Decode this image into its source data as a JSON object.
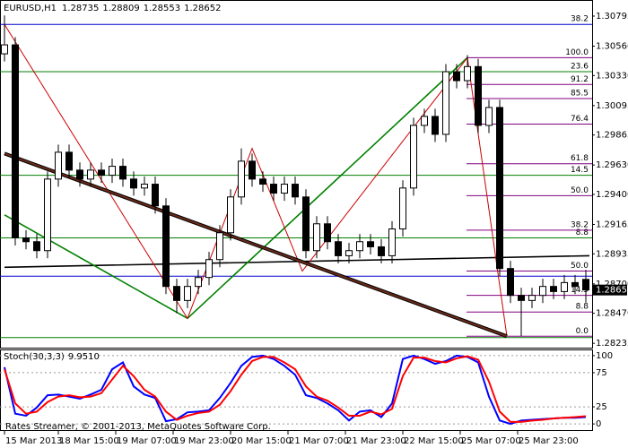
{
  "chart_data": [
    {
      "type": "candlestick",
      "title": "EURUSD,H1",
      "xlim": [
        -1.25,
        163.75
      ],
      "xticks": [
        {
          "value": 0,
          "label": "15 Mar 2013"
        },
        {
          "value": 15,
          "label": "18 Mar 15:00"
        },
        {
          "value": 31,
          "label": "19 Mar 07:00"
        },
        {
          "value": 47,
          "label": "19 Mar 23:00"
        },
        {
          "value": 63,
          "label": "20 Mar 15:00"
        },
        {
          "value": 79,
          "label": "21 Mar 07:00"
        },
        {
          "value": 95,
          "label": "21 Mar 23:00"
        },
        {
          "value": 111,
          "label": "22 Mar 15:00"
        },
        {
          "value": 127,
          "label": "25 Mar 07:00"
        },
        {
          "value": 143,
          "label": "25 Mar 23:00"
        }
      ],
      "ylim": [
        1.28201,
        1.30921
      ],
      "yticks": [
        1.30795,
        {
          "value": 1.3056,
          "label": "1.30560"
        },
        {
          "value": 1.3033,
          "label": "1.30330"
        },
        1.30095,
        1.29865,
        {
          "value": 1.2963,
          "label": "1.29630"
        },
        {
          "value": 1.294,
          "label": "1.29400"
        },
        1.29165,
        1.28935,
        {
          "value": 1.287,
          "label": "1.28700"
        },
        {
          "value": 1.2847,
          "label": "1.28470"
        },
        1.28235
      ],
      "x": [
        0,
        3,
        6,
        9,
        12,
        15,
        18,
        21,
        24,
        27,
        30,
        33,
        36,
        39,
        42,
        45,
        48,
        51,
        54,
        57,
        60,
        63,
        66,
        69,
        72,
        75,
        78,
        81,
        84,
        87,
        90,
        93,
        96,
        99,
        102,
        105,
        108,
        111,
        114,
        117,
        120,
        123,
        126,
        129,
        132,
        135,
        138,
        141,
        144,
        147,
        150,
        153,
        156,
        159,
        162
      ],
      "open": [
        1.305,
        1.3057,
        1.2906,
        1.2903,
        1.2896,
        1.2952,
        1.2973,
        1.2959,
        1.2952,
        1.2959,
        1.2955,
        1.2962,
        1.2952,
        1.2945,
        1.2948,
        1.2931,
        1.2868,
        1.2857,
        1.2868,
        1.2875,
        1.2889,
        1.291,
        1.2938,
        1.2966,
        1.2952,
        1.2948,
        1.2941,
        1.2948,
        1.2938,
        1.2896,
        1.2917,
        1.2903,
        1.2892,
        1.2896,
        1.2903,
        1.2899,
        1.2892,
        1.2913,
        1.2945,
        1.2994,
        1.3001,
        1.2987,
        1.3036,
        1.3029,
        1.304,
        1.2994,
        1.3008,
        1.2882,
        1.2861,
        1.2857,
        1.2861,
        1.2868,
        1.2864,
        1.2871,
        1.28735
      ],
      "high": [
        1.308,
        1.3063,
        1.2912,
        1.2909,
        1.2958,
        1.2979,
        1.2979,
        1.2965,
        1.2965,
        1.2965,
        1.2968,
        1.2968,
        1.2958,
        1.2954,
        1.2954,
        1.2937,
        1.2874,
        1.2874,
        1.2881,
        1.2895,
        1.2916,
        1.2944,
        1.2976,
        1.2972,
        1.2958,
        1.2954,
        1.2954,
        1.2954,
        1.2944,
        1.2923,
        1.2923,
        1.2909,
        1.2902,
        1.2909,
        1.2909,
        1.2905,
        1.2919,
        1.2951,
        1.3,
        1.3007,
        1.3007,
        1.3042,
        1.3042,
        1.3049,
        1.3046,
        1.3014,
        1.3014,
        1.2888,
        1.2867,
        1.2867,
        1.2874,
        1.2874,
        1.2877,
        1.2877,
        1.28809
      ],
      "low": [
        1.3044,
        1.29,
        1.2897,
        1.289,
        1.289,
        1.2946,
        1.2953,
        1.2946,
        1.2946,
        1.2949,
        1.2949,
        1.2946,
        1.2939,
        1.2939,
        1.2925,
        1.2862,
        1.2847,
        1.2851,
        1.2862,
        1.2869,
        1.2883,
        1.2904,
        1.2932,
        1.2946,
        1.2942,
        1.2935,
        1.2935,
        1.2932,
        1.289,
        1.289,
        1.2897,
        1.2886,
        1.2886,
        1.289,
        1.2893,
        1.2886,
        1.2886,
        1.2907,
        1.2939,
        1.2988,
        1.2981,
        1.2981,
        1.3023,
        1.3023,
        1.2988,
        1.2988,
        1.2876,
        1.2855,
        1.2829,
        1.2851,
        1.2855,
        1.2858,
        1.2858,
        1.2862,
        1.28553
      ],
      "close": [
        1.3057,
        1.2906,
        1.2903,
        1.2896,
        1.2952,
        1.2973,
        1.2959,
        1.2952,
        1.2959,
        1.2955,
        1.2962,
        1.2952,
        1.2945,
        1.2948,
        1.2931,
        1.2868,
        1.2857,
        1.2868,
        1.2875,
        1.2889,
        1.291,
        1.2938,
        1.2966,
        1.2952,
        1.2948,
        1.2941,
        1.2948,
        1.2938,
        1.2896,
        1.2917,
        1.2903,
        1.2892,
        1.2896,
        1.2903,
        1.2899,
        1.2892,
        1.2913,
        1.2945,
        1.2994,
        1.3001,
        1.2987,
        1.3036,
        1.3029,
        1.304,
        1.2994,
        1.3008,
        1.2882,
        1.2861,
        1.2857,
        1.2861,
        1.2868,
        1.2864,
        1.2871,
        1.2868,
        1.28652
      ],
      "fib_full": [
        {
          "label": "38.2",
          "price": 1.3073,
          "color": "#0000cc"
        },
        {
          "label": "23.6",
          "price": 1.3036,
          "color": "#008000"
        },
        {
          "label": "14.5",
          "price": 1.2955,
          "color": "#008000"
        },
        {
          "label": "8.8",
          "price": 1.2906,
          "color": "#008000"
        },
        {
          "price": 1.2876,
          "color": "#0000cc"
        },
        {
          "price": 1.2828,
          "color": "#008000"
        }
      ],
      "fib_short_color": "#800080",
      "fib_short": [
        {
          "label": "100.0",
          "price": 1.3047
        },
        {
          "label": "91.2",
          "price": 1.3026
        },
        {
          "label": "85.5",
          "price": 1.3015
        },
        {
          "label": "76.4",
          "price": 1.2995
        },
        {
          "label": "61.8",
          "price": 1.2964
        },
        {
          "label": "50.0",
          "price": 1.2939
        },
        {
          "label": "38.2",
          "price": 1.2912
        },
        {
          "label": "50.0",
          "price": 1.288
        },
        {
          "label": "14.5",
          "price": 1.2861
        },
        {
          "label": "8.8",
          "price": 1.2848
        },
        {
          "label": "0.0",
          "price": 1.2829
        }
      ],
      "trendlines": [
        {
          "color": "#000000",
          "x": [
            0,
            163
          ],
          "y": [
            1.2883,
            1.2892
          ]
        },
        {
          "color": "#008000",
          "x": [
            0,
            51
          ],
          "y": [
            1.2924,
            1.2843
          ]
        },
        {
          "color": "#008000",
          "x": [
            51,
            129
          ],
          "y": [
            1.2843,
            1.3047
          ]
        },
        {
          "color": "#cc0000",
          "x": [
            0,
            51,
            69,
            83,
            129,
            140
          ],
          "y": [
            1.3073,
            1.2843,
            1.2976,
            1.288,
            1.3047,
            1.2829
          ]
        },
        {
          "color": "#6b2a1a",
          "thick": true,
          "x": [
            0,
            140
          ],
          "y": [
            1.2972,
            1.2829
          ]
        }
      ]
    },
    {
      "type": "line",
      "title": "Stoch(30,3,3)",
      "watermark": "Rates Streamer, © 2001-2013, MetaQuotes Software Corp.",
      "ylim": [
        -9,
        109
      ],
      "yticks": [
        0,
        25,
        75,
        100
      ],
      "grid": true,
      "series": [
        {
          "color": "#0000ff",
          "values": [
            83,
            15,
            12,
            24,
            42,
            43,
            40,
            37,
            43,
            50,
            80,
            90,
            55,
            43,
            38,
            4,
            7,
            17,
            18,
            20,
            38,
            60,
            85,
            98,
            100,
            95,
            85,
            72,
            42,
            38,
            30,
            20,
            5,
            18,
            20,
            10,
            30,
            95,
            100,
            95,
            88,
            92,
            100,
            98,
            90,
            40,
            5,
            0,
            5,
            6,
            7,
            8,
            9,
            9,
            9.951
          ],
          "value_labels": [
            null,
            null,
            null,
            null,
            null,
            null,
            null,
            null,
            null,
            null,
            null,
            null,
            null,
            null,
            null,
            null,
            null,
            null,
            null,
            null,
            null,
            null,
            null,
            null,
            null,
            null,
            null,
            null,
            null,
            null,
            null,
            null,
            null,
            null,
            null,
            null,
            null,
            null,
            null,
            null,
            null,
            null,
            null,
            null,
            null,
            null,
            null,
            null,
            null,
            null,
            null,
            null,
            null,
            null,
            "9.9510"
          ]
        },
        {
          "color": "#ff0000",
          "values": [
            80,
            30,
            15,
            18,
            32,
            40,
            42,
            39,
            40,
            45,
            65,
            85,
            70,
            50,
            40,
            18,
            6,
            12,
            16,
            18,
            28,
            48,
            72,
            92,
            98,
            98,
            90,
            80,
            55,
            40,
            34,
            24,
            12,
            12,
            18,
            14,
            22,
            70,
            97,
            97,
            92,
            90,
            96,
            99,
            94,
            62,
            18,
            3,
            3,
            5,
            6,
            8,
            9,
            10,
            11.2685
          ]
        }
      ]
    }
  ]
}
